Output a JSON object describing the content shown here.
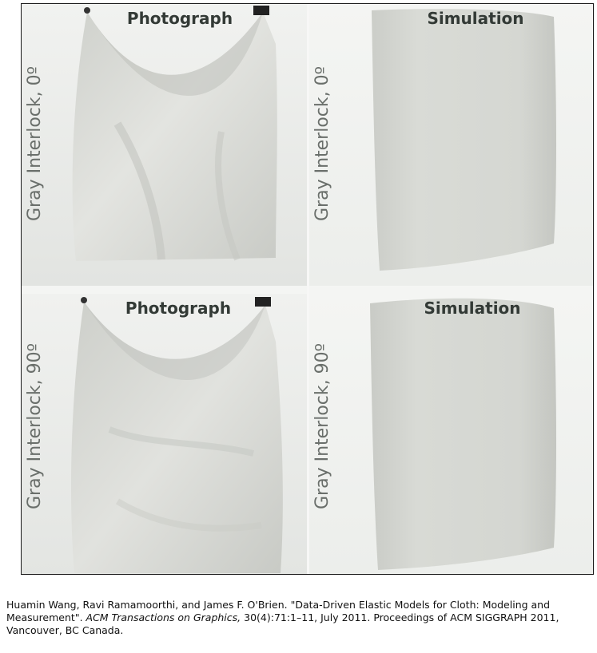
{
  "panels": [
    {
      "header": "Photograph",
      "side_label": "Gray Interlock, 0º"
    },
    {
      "header": "Simulation",
      "side_label": "Gray Interlock, 0º"
    },
    {
      "header": "Photograph",
      "side_label": "Gray Interlock, 90º"
    },
    {
      "header": "Simulation",
      "side_label": "Gray Interlock, 90º"
    }
  ],
  "caption": {
    "authors": "Huamin Wang, Ravi Ramamoorthi, and James F. O'Brien. \"Data-Driven Elastic Models for Cloth: Modeling and Measurement\". ",
    "journal": "ACM Transactions on Graphics,",
    "details": " 30(4):71:1–11, July 2011. Proceedings of ACM SIGGRAPH 2011, Vancouver, BC Canada."
  },
  "colors": {
    "cloth": "#d9dbd6",
    "backdrop": "#eef0ee",
    "header_text": "#333a36",
    "side_text": "#6a6f6b"
  }
}
